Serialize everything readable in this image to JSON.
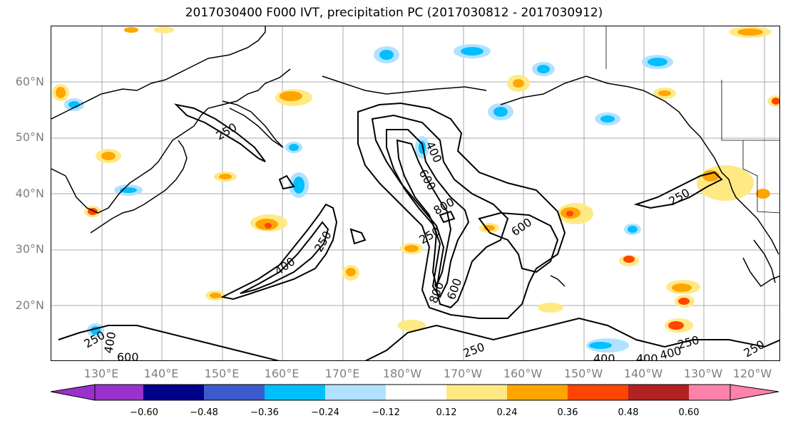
{
  "title": "2017030400 F000 IVT, precipitation PC (2017030812 - 2017030912)",
  "map": {
    "lat_labels": [
      "60°N",
      "50°N",
      "40°N",
      "30°N",
      "20°N"
    ],
    "lon_labels": [
      "130°E",
      "140°E",
      "150°E",
      "160°E",
      "170°E",
      "180°W",
      "170°W",
      "160°W",
      "150°W",
      "140°W",
      "130°W",
      "120°W"
    ],
    "contour_labels": [
      "250",
      "400",
      "600",
      "800",
      "400",
      "250",
      "400",
      "250",
      "600",
      "250",
      "250",
      "400",
      "250",
      "250",
      "800",
      "600",
      "400",
      "600",
      "400",
      "250"
    ]
  },
  "colorbar": {
    "tick_labels": [
      "−0.60",
      "−0.48",
      "−0.36",
      "−0.24",
      "−0.12",
      "0.12",
      "0.24",
      "0.36",
      "0.48",
      "0.60"
    ],
    "colors": [
      "#9932cc",
      "#00008b",
      "#3a5bcc",
      "#00bfff",
      "#b0e2ff",
      "#ffffff",
      "#ffe985",
      "#ffa500",
      "#ff4500",
      "#b22222",
      "#ff82ab"
    ]
  },
  "colors": {
    "contour": "#000000",
    "grid": "#aaaaaa",
    "coast": "#000000"
  }
}
